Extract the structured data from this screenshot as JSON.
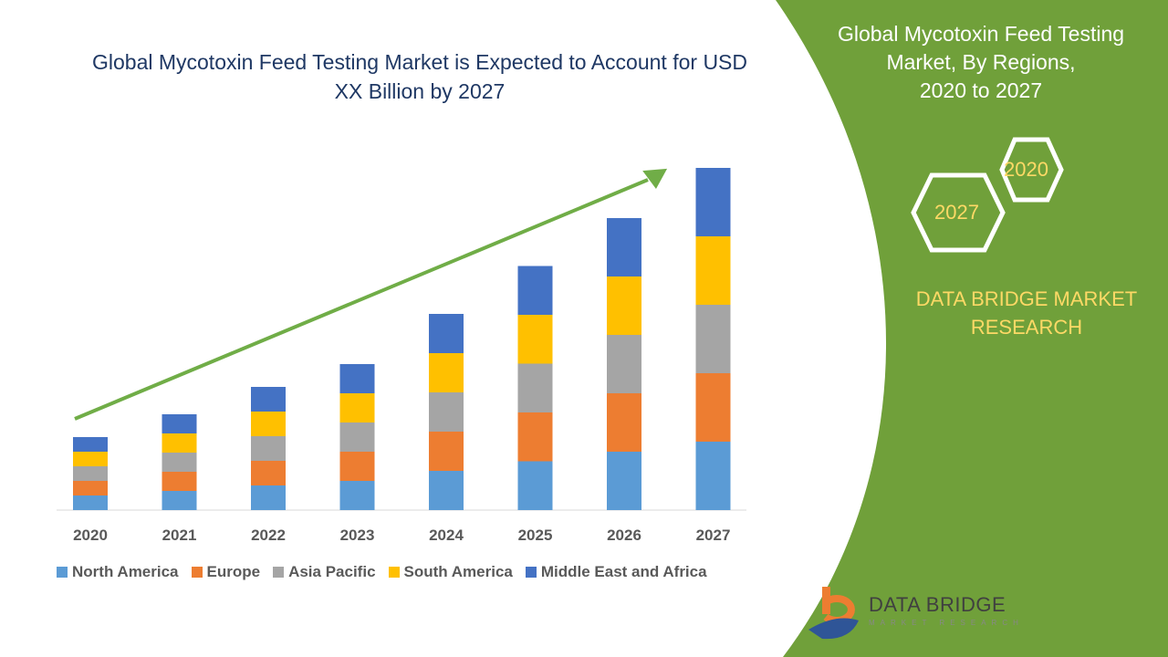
{
  "chart_data": {
    "type": "bar",
    "stacked": true,
    "title": "Global Mycotoxin Feed Testing Market is Expected to Account for USD XX Billion by 2027",
    "categories": [
      "2020",
      "2021",
      "2022",
      "2023",
      "2024",
      "2025",
      "2026",
      "2027"
    ],
    "series": [
      {
        "name": "North America",
        "color": "#5b9bd5",
        "values": [
          1.6,
          2.1,
          2.7,
          3.2,
          4.3,
          5.35,
          6.4,
          7.5
        ]
      },
      {
        "name": "Europe",
        "color": "#ed7d31",
        "values": [
          1.6,
          2.1,
          2.7,
          3.2,
          4.3,
          5.35,
          6.4,
          7.5
        ]
      },
      {
        "name": "Asia Pacific",
        "color": "#a5a5a5",
        "values": [
          1.6,
          2.1,
          2.7,
          3.2,
          4.3,
          5.35,
          6.4,
          7.5
        ]
      },
      {
        "name": "South America",
        "color": "#ffc000",
        "values": [
          1.6,
          2.1,
          2.7,
          3.2,
          4.3,
          5.35,
          6.4,
          7.5
        ]
      },
      {
        "name": "Middle East and Africa",
        "color": "#4472c4",
        "values": [
          1.6,
          2.1,
          2.7,
          3.2,
          4.3,
          5.35,
          6.4,
          7.5
        ]
      }
    ],
    "xlabel": "",
    "ylabel": "",
    "grid": false,
    "legend": "bottom",
    "trend_arrow_color": "#70ad47"
  },
  "side_panel": {
    "title_lines": [
      "Global Mycotoxin Feed Testing",
      "Market, By Regions,",
      "2020 to 2027"
    ],
    "hex_start": "2020",
    "hex_end": "2027",
    "brand_lines": [
      "DATA BRIDGE MARKET",
      "RESEARCH"
    ],
    "color": "#70a03a"
  },
  "logo": {
    "name": "DATA BRIDGE",
    "tagline": "MARKET RESEARCH"
  }
}
